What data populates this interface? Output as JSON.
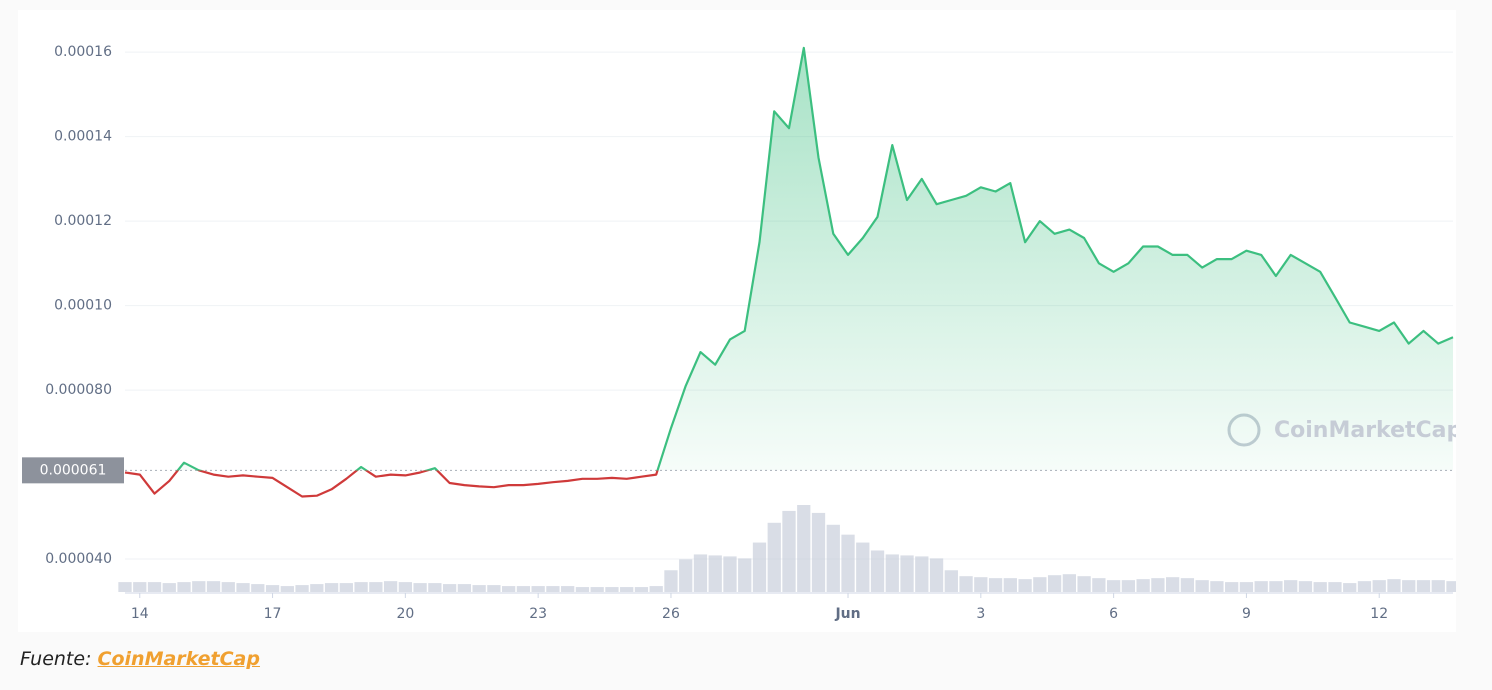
{
  "chart_data": {
    "type": "line",
    "categories": [
      null,
      "14",
      null,
      null,
      null,
      null,
      null,
      null,
      null,
      null,
      "17",
      null,
      null,
      null,
      null,
      null,
      null,
      null,
      null,
      "20",
      null,
      null,
      null,
      null,
      null,
      null,
      null,
      null,
      "23",
      null,
      null,
      null,
      null,
      null,
      null,
      null,
      null,
      "26",
      null,
      null,
      null,
      null,
      null,
      null,
      null,
      null,
      null,
      null,
      null,
      "Jun",
      null,
      null,
      null,
      null,
      null,
      null,
      null,
      null,
      "3",
      null,
      null,
      null,
      null,
      null,
      null,
      null,
      null,
      "6",
      null,
      null,
      null,
      null,
      null,
      null,
      null,
      null,
      "9",
      null,
      null,
      null,
      null,
      null,
      null,
      null,
      null,
      "12",
      null,
      null,
      null,
      null,
      null
    ],
    "values": [
      6.05e-05,
      6e-05,
      5.55e-05,
      5.85e-05,
      6.28e-05,
      6.1e-05,
      6e-05,
      5.95e-05,
      5.98e-05,
      5.95e-05,
      5.92e-05,
      5.7e-05,
      5.48e-05,
      5.5e-05,
      5.65e-05,
      5.9e-05,
      6.18e-05,
      5.95e-05,
      6e-05,
      5.98e-05,
      6.05e-05,
      6.15e-05,
      5.8e-05,
      5.75e-05,
      5.72e-05,
      5.7e-05,
      5.75e-05,
      5.75e-05,
      5.78e-05,
      5.82e-05,
      5.85e-05,
      5.9e-05,
      5.9e-05,
      5.92e-05,
      5.9e-05,
      5.95e-05,
      6e-05,
      7.1e-05,
      8.1e-05,
      8.9e-05,
      8.6e-05,
      9.2e-05,
      9.4e-05,
      0.000115,
      0.000146,
      0.000142,
      0.000161,
      0.000135,
      0.000117,
      0.000112,
      0.000116,
      0.000121,
      0.000138,
      0.000125,
      0.00013,
      0.000124,
      0.000125,
      0.000126,
      0.000128,
      0.000127,
      0.000129,
      0.000115,
      0.00012,
      0.000117,
      0.000118,
      0.000116,
      0.00011,
      0.000108,
      0.00011,
      0.000114,
      0.000114,
      0.000112,
      0.000112,
      0.000109,
      0.000111,
      0.000111,
      0.000113,
      0.000112,
      0.000107,
      0.000112,
      0.00011,
      0.000108,
      0.000102,
      9.6e-05,
      9.5e-05,
      9.4e-05,
      9.6e-05,
      9.1e-05,
      9.4e-05,
      9.1e-05,
      9.25e-05
    ],
    "volume": [
      10,
      10,
      10,
      9,
      10,
      11,
      11,
      10,
      9,
      8,
      7,
      6,
      7,
      8,
      9,
      9,
      10,
      10,
      11,
      10,
      9,
      9,
      8,
      8,
      7,
      7,
      6,
      6,
      6,
      6,
      6,
      5,
      5,
      5,
      5,
      5,
      6,
      22,
      33,
      38,
      37,
      36,
      34,
      50,
      70,
      82,
      88,
      80,
      68,
      58,
      50,
      42,
      38,
      37,
      36,
      34,
      22,
      16,
      15,
      14,
      14,
      13,
      15,
      17,
      18,
      16,
      14,
      12,
      12,
      13,
      14,
      15,
      14,
      12,
      11,
      10,
      10,
      11,
      11,
      12,
      11,
      10,
      10,
      9,
      11,
      12,
      13,
      12,
      12,
      12,
      11
    ],
    "color_up": "#3cbf80",
    "color_down": "#cf3a3a",
    "ylim": [
      3.22e-05,
      0.0001695
    ],
    "yticks": [
      {
        "value": 4e-05,
        "label": "0.000040"
      },
      {
        "value": 8e-05,
        "label": "0.000080"
      },
      {
        "value": 0.0001,
        "label": "0.00010"
      },
      0.00012,
      0.00014,
      0.00016
    ],
    "reference_line": {
      "value": 6.1e-05
    },
    "watermark": "CoinMarketCap",
    "grid": true
  },
  "caption": {
    "prefix": "Fuente:",
    "link": "CoinMarketCap"
  }
}
